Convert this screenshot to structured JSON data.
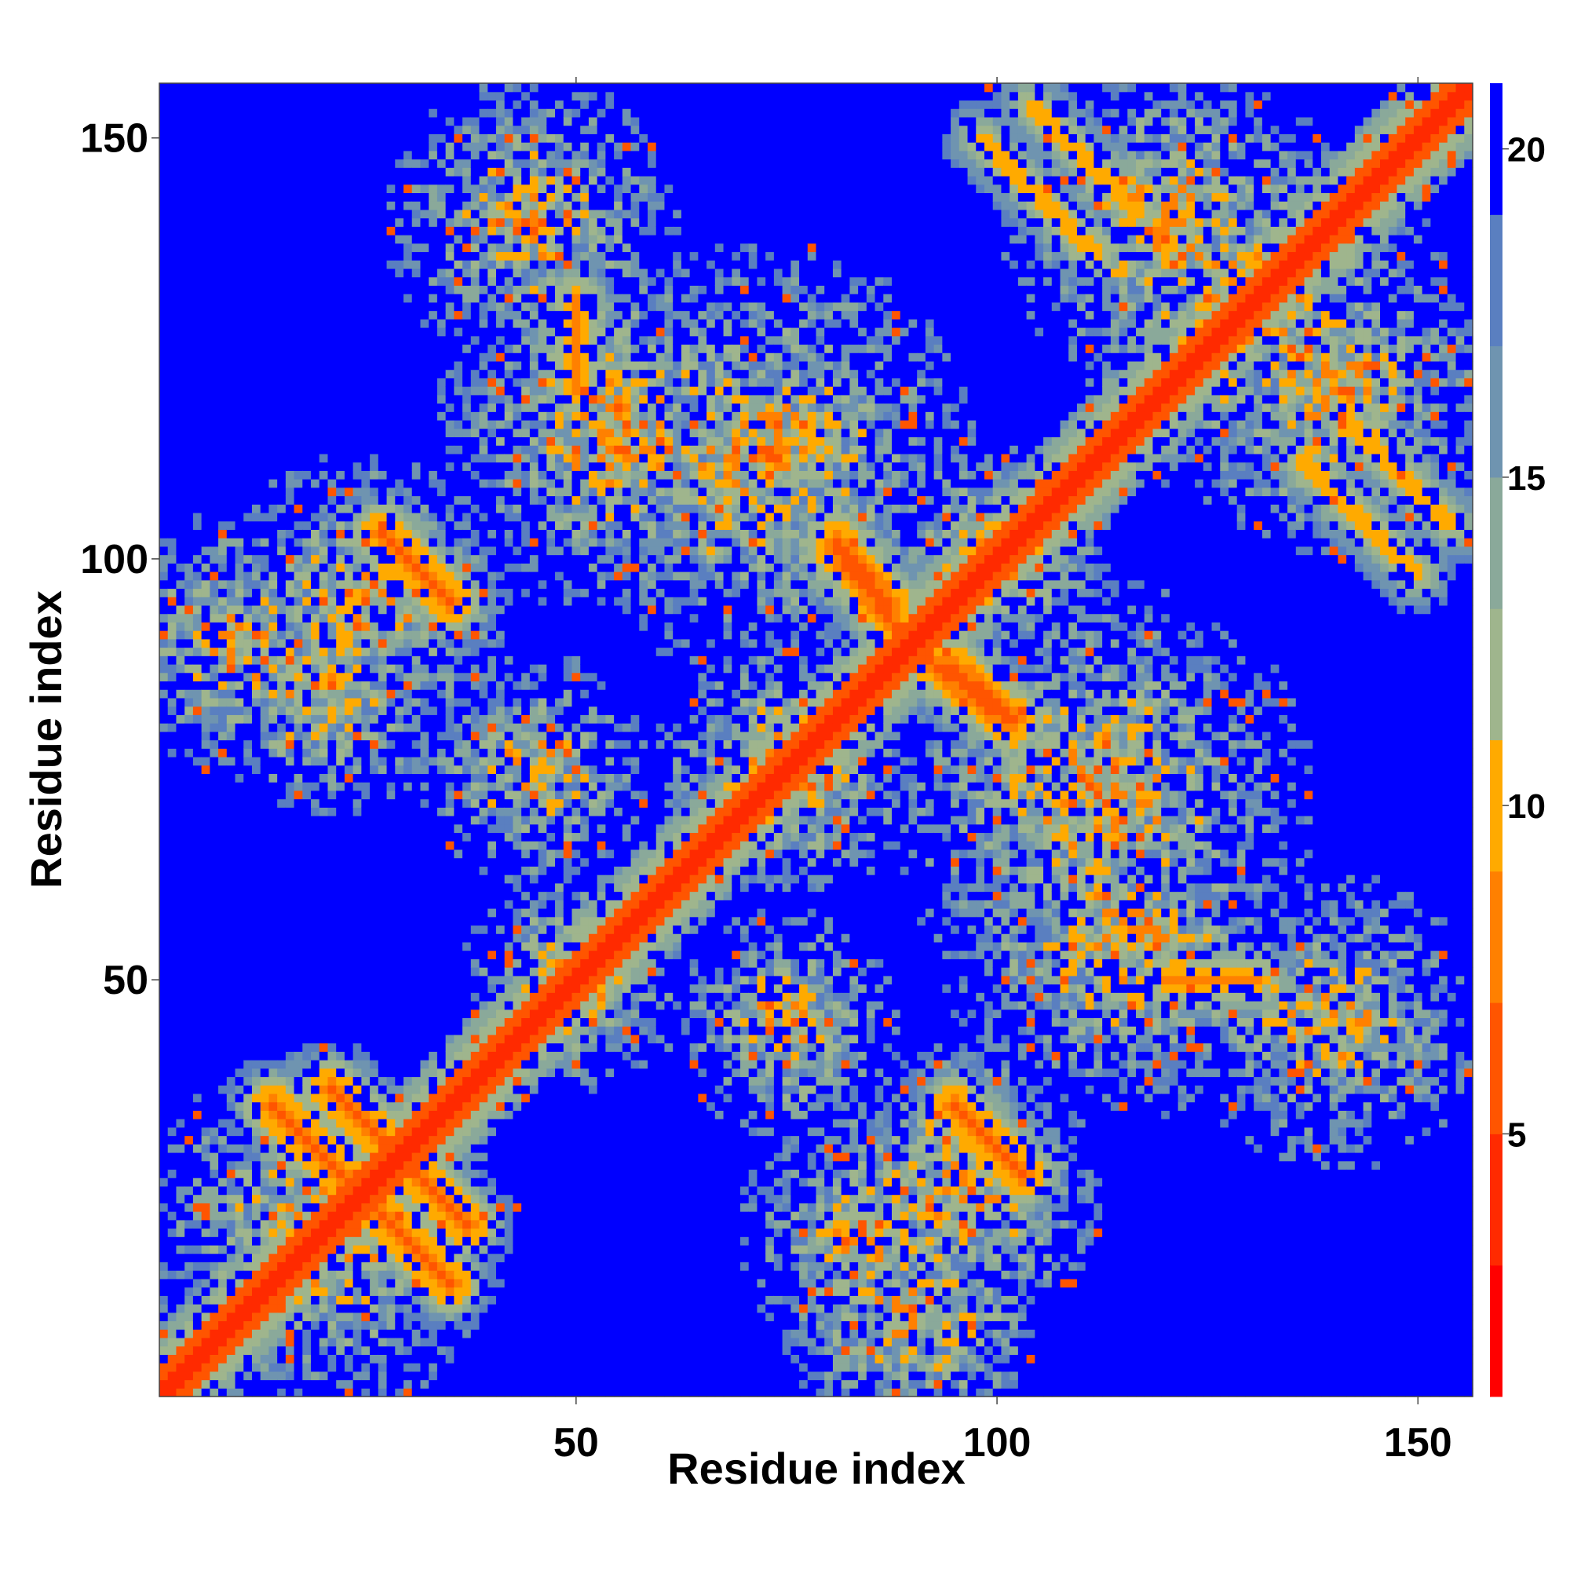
{
  "chart_data": {
    "type": "heatmap",
    "title": "",
    "xlabel": "Residue index",
    "ylabel": "Residue index",
    "xlim": [
      1,
      156
    ],
    "ylim": [
      1,
      156
    ],
    "xticks": [
      50,
      100,
      150
    ],
    "yticks": [
      50,
      100,
      150
    ],
    "n_residues": 156,
    "colorbar": {
      "ticks": [
        5,
        10,
        15,
        20
      ],
      "range": [
        1,
        21
      ],
      "colors": [
        "#ff0000",
        "#ff2a00",
        "#ff5500",
        "#ff8000",
        "#ffaa00",
        "#9fb58d",
        "#8aa99a",
        "#6f94b0",
        "#5a7fc0",
        "#0000ff"
      ],
      "saturation_color": "#0000ff"
    },
    "diagonal_value": 3.8,
    "structure_contacts": [
      {
        "x": [
          21,
          31
        ],
        "y": [
          37,
          27
        ],
        "value": 6
      },
      {
        "x": [
          27,
          35
        ],
        "y": [
          22,
          14
        ],
        "value": 6
      },
      {
        "x": [
          27,
          35
        ],
        "y": [
          103,
          95
        ],
        "value": 6
      },
      {
        "x": [
          95,
          103
        ],
        "y": [
          35,
          27
        ],
        "value": 6
      },
      {
        "x": [
          81,
          87
        ],
        "y": [
          102,
          95
        ],
        "value": 6
      },
      {
        "x": [
          92,
          101
        ],
        "y": [
          88,
          81
        ],
        "value": 6
      },
      {
        "x": [
          120,
          131
        ],
        "y": [
          50,
          50
        ],
        "value": 8
      },
      {
        "x": [
          136,
          150
        ],
        "y": [
          112,
          98
        ],
        "value": 9
      },
      {
        "x": [
          104,
          117
        ],
        "y": [
          154,
          141
        ],
        "value": 9
      }
    ],
    "grid": false,
    "legend": "none"
  }
}
